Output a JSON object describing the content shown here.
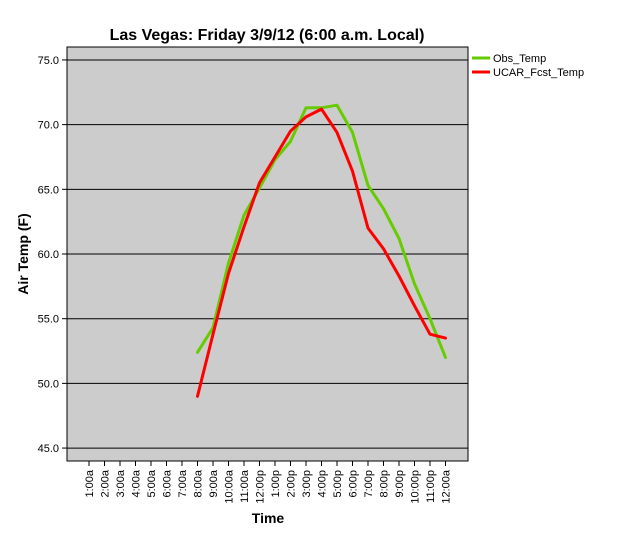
{
  "chart_data": {
    "type": "line",
    "title": "Las Vegas: Friday 3/9/12 (6:00 a.m. Local)",
    "xlabel": "Time",
    "ylabel": "Air Temp (F)",
    "ylim": [
      44,
      76
    ],
    "yticks": [
      "45.0",
      "50.0",
      "55.0",
      "60.0",
      "65.0",
      "70.0",
      "75.0"
    ],
    "grid": "horizontal",
    "legend_position": "top-right",
    "background_color": "#cccccc",
    "categories": [
      "1:00a",
      "2:00a",
      "3:00a",
      "4:00a",
      "5:00a",
      "6:00a",
      "7:00a",
      "8:00a",
      "9:00a",
      "10:00a",
      "11:00a",
      "12:00p",
      "1:00p",
      "2:00p",
      "3:00p",
      "4:00p",
      "5:00p",
      "6:00p",
      "7:00p",
      "8:00p",
      "9:00p",
      "10:00p",
      "11:00p",
      "12:00a"
    ],
    "series": [
      {
        "name": "Obs_Temp",
        "color": "#66cc00",
        "values": [
          null,
          null,
          null,
          null,
          null,
          null,
          null,
          52.4,
          54.3,
          59.3,
          63.0,
          65.1,
          67.3,
          68.7,
          71.3,
          71.3,
          71.5,
          69.4,
          65.3,
          63.5,
          61.2,
          57.7,
          55.0,
          52.0
        ]
      },
      {
        "name": "UCAR_Fcst_Temp",
        "color": "#ff0000",
        "values": [
          null,
          null,
          null,
          null,
          null,
          null,
          null,
          49.0,
          53.8,
          58.5,
          62.1,
          65.5,
          67.5,
          69.5,
          70.6,
          71.2,
          69.4,
          66.4,
          62.0,
          60.4,
          58.3,
          56.0,
          53.8,
          53.5
        ]
      }
    ]
  }
}
